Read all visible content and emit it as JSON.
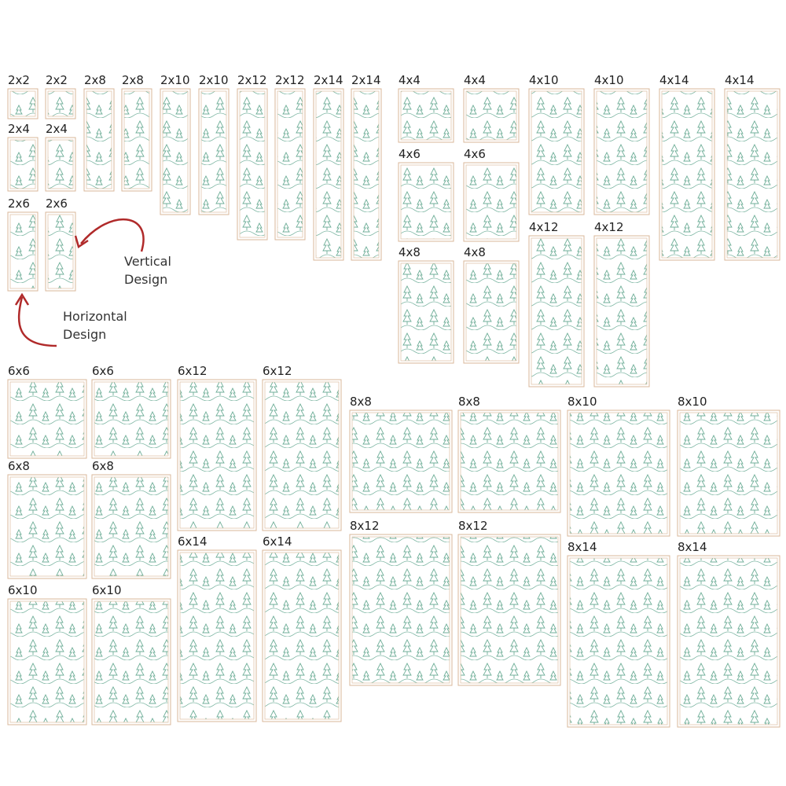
{
  "tiles": [
    "2x2",
    "2x2",
    "2x8",
    "2x8",
    "2x10",
    "2x10",
    "2x12",
    "2x12",
    "2x14",
    "2x14",
    "2x4",
    "2x4",
    "2x6",
    "2x6",
    "4x4",
    "4x4",
    "4x10",
    "4x10",
    "4x14",
    "4x14",
    "4x6",
    "4x6",
    "4x8",
    "4x8",
    "4x12",
    "4x12",
    "6x6",
    "6x6",
    "6x8",
    "6x8",
    "6x10",
    "6x10",
    "6x12",
    "6x12",
    "6x14",
    "6x14",
    "8x8",
    "8x8",
    "8x10",
    "8x10",
    "8x12",
    "8x12",
    "8x14",
    "8x14"
  ],
  "annotations": [
    {
      "lines": [
        "Vertical",
        "Design"
      ]
    },
    {
      "lines": [
        "Horizontal",
        "Design"
      ]
    }
  ]
}
